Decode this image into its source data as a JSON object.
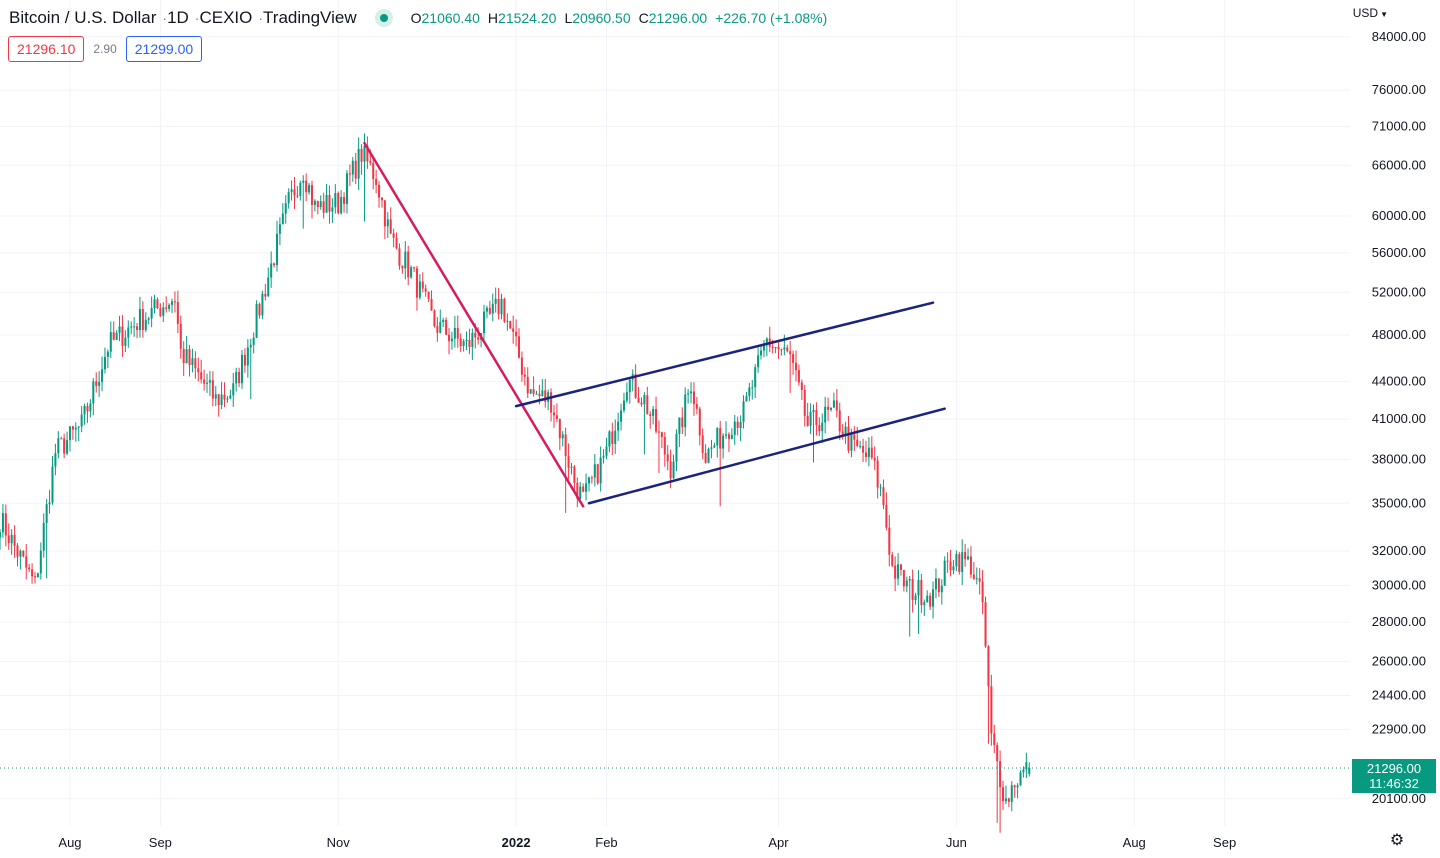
{
  "header": {
    "symbol": "Bitcoin / U.S. Dollar",
    "interval": "1D",
    "exchange": "CEXIO",
    "source": "TradingView",
    "ohlc": {
      "o_label": "O",
      "o": "21060.40",
      "h_label": "H",
      "h": "21524.20",
      "l_label": "L",
      "l": "20960.50",
      "c_label": "C",
      "c": "21296.00",
      "change": "+226.70 (+1.08%)"
    }
  },
  "quotes": {
    "bid": "21296.10",
    "spread": "2.90",
    "ask": "21299.00"
  },
  "currency": "USD",
  "last_price": {
    "price": "21296.00",
    "countdown": "11:46:32",
    "value": 21296
  },
  "colors": {
    "up": "#089981",
    "down": "#f23645",
    "trend_line": "#d81b60",
    "channel": "#1a237e",
    "grid": "#f0f3fa",
    "text": "#131722"
  },
  "icons": {
    "settings": "gear-icon",
    "status": "market-open-dot-icon",
    "currency_menu": "chevron-down-icon"
  },
  "chart_data": {
    "type": "candlestick",
    "scale": "log",
    "grid": true,
    "ylim": [
      19100,
      90000
    ],
    "y_ticks": [
      84000,
      76000,
      71000,
      66000,
      60000,
      56000,
      52000,
      48000,
      44000,
      41000,
      38000,
      35000,
      32000,
      30000,
      28000,
      26000,
      24400,
      22900,
      20100
    ],
    "y_tick_labels": [
      "84000.00",
      "76000.00",
      "71000.00",
      "66000.00",
      "60000.00",
      "56000.00",
      "52000.00",
      "48000.00",
      "44000.00",
      "41000.00",
      "38000.00",
      "35000.00",
      "32000.00",
      "30000.00",
      "28000.00",
      "26000.00",
      "24400.00",
      "22900.00",
      "20100.00"
    ],
    "x_range": [
      "2021-07-08",
      "2022-10-14"
    ],
    "x_ticks": [
      {
        "date": "2021-08-01",
        "label": "Aug",
        "bold": false
      },
      {
        "date": "2021-09-01",
        "label": "Sep",
        "bold": false
      },
      {
        "date": "2021-11-01",
        "label": "Nov",
        "bold": false
      },
      {
        "date": "2022-01-01",
        "label": "2022",
        "bold": true
      },
      {
        "date": "2022-02-01",
        "label": "Feb",
        "bold": false
      },
      {
        "date": "2022-04-01",
        "label": "Apr",
        "bold": false
      },
      {
        "date": "2022-06-01",
        "label": "Jun",
        "bold": false
      },
      {
        "date": "2022-08-01",
        "label": "Aug",
        "bold": false
      },
      {
        "date": "2022-09-01",
        "label": "Sep",
        "bold": false
      }
    ],
    "price_path": [
      [
        "2021-07-08",
        34000
      ],
      [
        "2021-07-20",
        30000
      ],
      [
        "2021-07-27",
        38500
      ],
      [
        "2021-08-05",
        40500
      ],
      [
        "2021-08-14",
        47000
      ],
      [
        "2021-08-24",
        49200
      ],
      [
        "2021-09-06",
        51500
      ],
      [
        "2021-09-08",
        46500
      ],
      [
        "2021-09-20",
        42500
      ],
      [
        "2021-09-26",
        43200
      ],
      [
        "2021-10-05",
        50500
      ],
      [
        "2021-10-15",
        61500
      ],
      [
        "2021-10-20",
        65500
      ],
      [
        "2021-10-24",
        61000
      ],
      [
        "2021-11-01",
        61500
      ],
      [
        "2021-11-09",
        67500
      ],
      [
        "2021-11-14",
        64500
      ],
      [
        "2021-11-19",
        57500
      ],
      [
        "2021-11-26",
        54000
      ],
      [
        "2021-12-04",
        49000
      ],
      [
        "2021-12-15",
        47000
      ],
      [
        "2021-12-27",
        51000
      ],
      [
        "2022-01-06",
        43000
      ],
      [
        "2022-01-13",
        42500
      ],
      [
        "2022-01-21",
        36500
      ],
      [
        "2022-01-24",
        35200
      ],
      [
        "2022-02-01",
        38500
      ],
      [
        "2022-02-08",
        44200
      ],
      [
        "2022-02-14",
        42500
      ],
      [
        "2022-02-23",
        37500
      ],
      [
        "2022-03-02",
        44000
      ],
      [
        "2022-03-07",
        38200
      ],
      [
        "2022-03-16",
        40800
      ],
      [
        "2022-03-20",
        41500
      ],
      [
        "2022-03-28",
        47500
      ],
      [
        "2022-04-05",
        46000
      ],
      [
        "2022-04-11",
        40500
      ],
      [
        "2022-04-20",
        41500
      ],
      [
        "2022-04-26",
        39000
      ],
      [
        "2022-05-03",
        38000
      ],
      [
        "2022-05-07",
        35000
      ],
      [
        "2022-05-10",
        31000
      ],
      [
        "2022-05-16",
        29800
      ],
      [
        "2022-05-24",
        29500
      ],
      [
        "2022-05-31",
        31700
      ],
      [
        "2022-06-06",
        31200
      ],
      [
        "2022-06-10",
        29000
      ],
      [
        "2022-06-13",
        22500
      ],
      [
        "2022-06-18",
        20000
      ],
      [
        "2022-06-21",
        20800
      ],
      [
        "2022-06-26",
        21296
      ]
    ],
    "last_candle": {
      "date": "2022-06-26",
      "open": 21060.4,
      "high": 21524.2,
      "low": 20960.5,
      "close": 21296.0
    },
    "annotations": {
      "downtrend_line": {
        "from": [
          "2021-11-10",
          68800
        ],
        "to": [
          "2022-01-24",
          34800
        ]
      },
      "channel_upper": {
        "from": [
          "2022-01-01",
          42000
        ],
        "to": [
          "2022-05-24",
          51000
        ]
      },
      "channel_lower": {
        "from": [
          "2022-01-26",
          35000
        ],
        "to": [
          "2022-05-28",
          41800
        ]
      }
    }
  }
}
